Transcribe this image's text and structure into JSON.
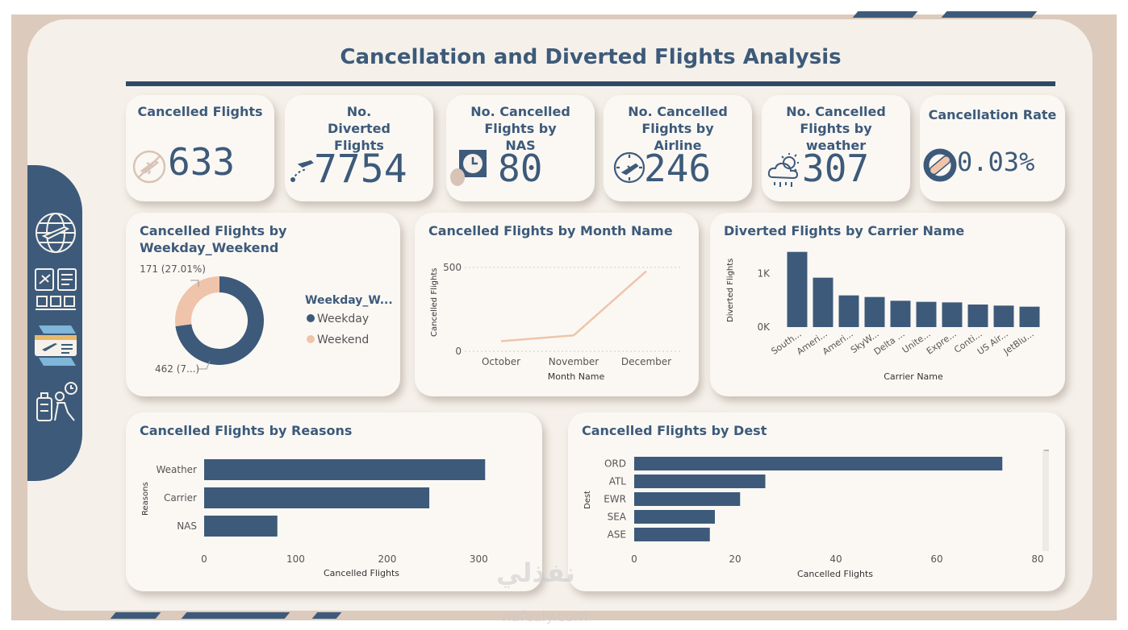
{
  "dashboard": {
    "title": "Cancellation and Diverted Flights Analysis"
  },
  "colors": {
    "frame": "#dccabd",
    "canvas": "#f5f1ea",
    "card": "#fbf8f4",
    "primary": "#3d5a7a",
    "accent": "#f0c4aa"
  },
  "sidebar": {
    "icons": [
      "globe-plane-icon",
      "airport-board-icon",
      "boarding-pass-icon",
      "traveler-icon"
    ]
  },
  "kpis": [
    {
      "title": "Cancelled Flights",
      "value": "633",
      "icon": "no-flight-icon"
    },
    {
      "title": "No. Diverted Flights",
      "value": "7754",
      "icon": "plane-route-icon"
    },
    {
      "title": "No. Cancelled Flights by NAS",
      "value": "80",
      "icon": "clock-board-icon"
    },
    {
      "title": "No. Cancelled Flights by Airline",
      "value": "246",
      "icon": "plane-clock-icon"
    },
    {
      "title": "No. Cancelled Flights by weather",
      "value": "307",
      "icon": "weather-cloud-icon"
    },
    {
      "title": "Cancellation Rate",
      "value": "0.03%",
      "icon": "bandage-icon"
    }
  ],
  "chart_data": [
    {
      "type": "pie",
      "title": "Cancelled Flights by Weekday_Weekend",
      "legend_title": "Weekday_W...",
      "categories": [
        "Weekday",
        "Weekend"
      ],
      "values": [
        462,
        171
      ],
      "labels": [
        "462 (7...)",
        "171 (27.01%)"
      ],
      "colors": [
        "#3d5a7a",
        "#f0c4aa"
      ],
      "legend": "right"
    },
    {
      "type": "line",
      "title": "Cancelled Flights by Month Name",
      "categories": [
        "October",
        "November",
        "December"
      ],
      "values": [
        60,
        95,
        478
      ],
      "xlabel": "Month Name",
      "ylabel": "Cancelled Flights",
      "yticks": [
        "0",
        "500"
      ],
      "ylim": [
        0,
        500
      ],
      "color": "#f0c4aa"
    },
    {
      "type": "bar",
      "title": "Diverted Flights by Carrier Name",
      "categories": [
        "South...",
        "Ameri...",
        "Ameri...",
        "SkyW...",
        "Delta ...",
        "Unite...",
        "Expre...",
        "Conti...",
        "US Air...",
        "JetBlu..."
      ],
      "values": [
        1400,
        920,
        590,
        560,
        490,
        470,
        460,
        420,
        400,
        380
      ],
      "xlabel": "Carrier Name",
      "ylabel": "Diverted Flights",
      "yticks": [
        "0K",
        "1K"
      ],
      "ylim": [
        0,
        1500
      ]
    },
    {
      "type": "bar",
      "orientation": "horizontal",
      "title": "Cancelled Flights by Reasons",
      "categories": [
        "Weather",
        "Carrier",
        "NAS"
      ],
      "values": [
        307,
        246,
        80
      ],
      "xlabel": "Cancelled Flights",
      "ylabel": "Reasons",
      "xticks": [
        "0",
        "100",
        "200",
        "300"
      ],
      "xlim": [
        0,
        320
      ]
    },
    {
      "type": "bar",
      "orientation": "horizontal",
      "title": "Cancelled Flights by Dest",
      "categories": [
        "ORD",
        "ATL",
        "EWR",
        "SEA",
        "ASE"
      ],
      "values": [
        73,
        26,
        21,
        16,
        15
      ],
      "xlabel": "Cancelled Flights",
      "ylabel": "Dest",
      "xticks": [
        "0",
        "20",
        "40",
        "60",
        "80"
      ],
      "xlim": [
        0,
        80
      ]
    }
  ],
  "watermark": {
    "arabic": "نفذلي",
    "site": "nafezly.com"
  }
}
